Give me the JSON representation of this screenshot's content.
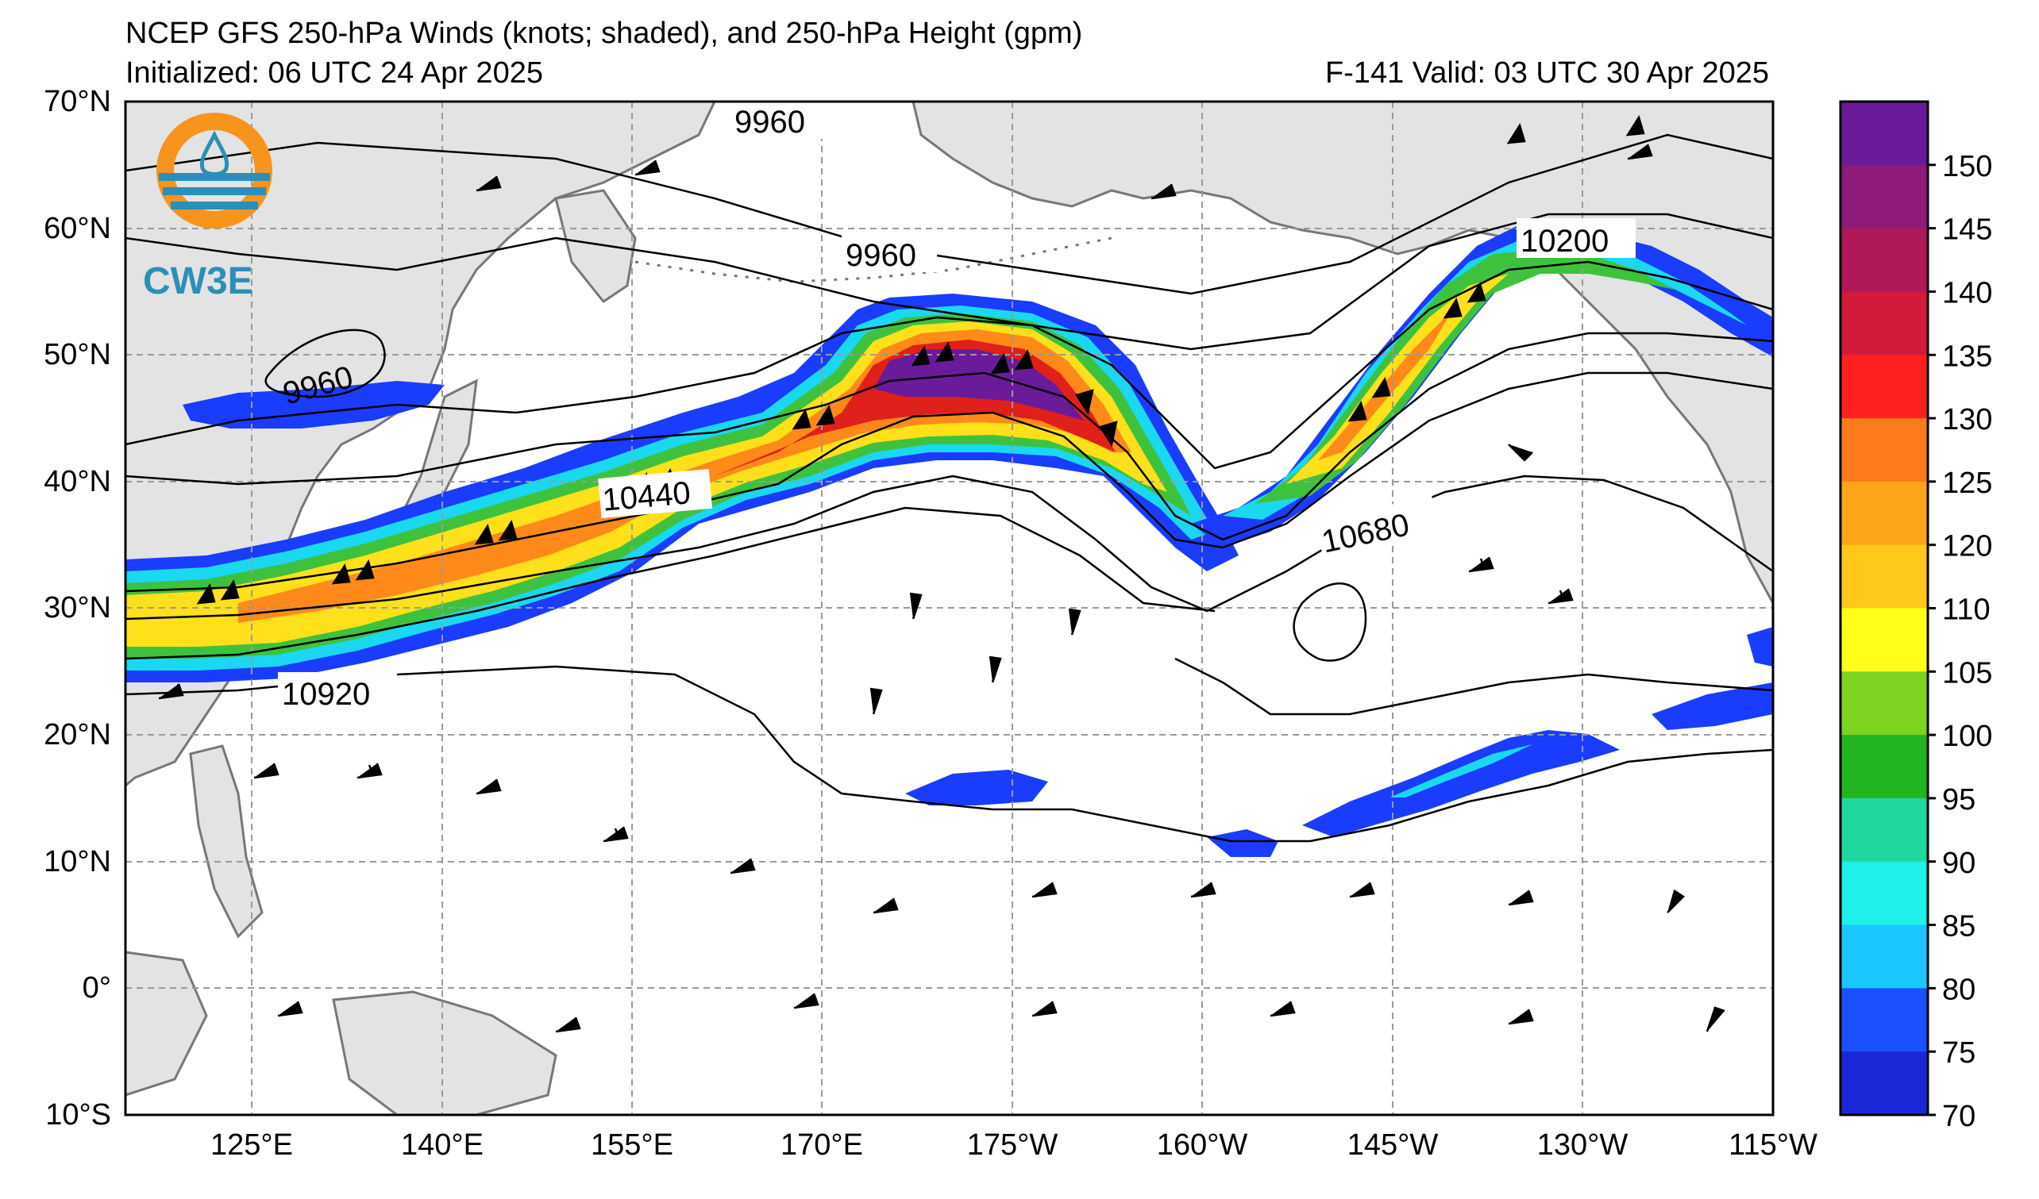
{
  "header": {
    "title": "NCEP GFS 250-hPa Winds (knots; shaded), and 250-hPa Height (gpm)",
    "initialized": "Initialized: 06 UTC 24 Apr 2025",
    "valid": "F-141  Valid: 03 UTC 30 Apr 2025"
  },
  "logo": {
    "text": "CW3E",
    "ring_color": "#f7941d",
    "water_color": "#2b8fb8"
  },
  "axes": {
    "lat_labels": [
      "70°N",
      "60°N",
      "50°N",
      "40°N",
      "30°N",
      "20°N",
      "10°N",
      "0°",
      "10°S"
    ],
    "lon_labels": [
      "125°E",
      "140°E",
      "155°E",
      "170°E",
      "175°W",
      "160°W",
      "145°W",
      "130°W",
      "115°W"
    ]
  },
  "contour_labels": [
    "9960",
    "9960",
    "9960",
    "10200",
    "10440",
    "10680",
    "10920"
  ],
  "colorbar": {
    "labels": [
      "150",
      "145",
      "140",
      "135",
      "130",
      "125",
      "120",
      "110",
      "105",
      "100",
      "95",
      "90",
      "85",
      "80",
      "75",
      "70"
    ],
    "colors": [
      "#6a1b9a",
      "#8e1a7a",
      "#b0185a",
      "#d41a3a",
      "#ff2020",
      "#ff7a1a",
      "#ffa51a",
      "#ffc81a",
      "#ffff1a",
      "#7ed321",
      "#21b521",
      "#1ed8a0",
      "#1ef0ea",
      "#1ac8ff",
      "#1a50ff",
      "#1a28d8"
    ]
  },
  "colors": {
    "land": "#e3e3e3",
    "coast": "#777777",
    "grid": "#9a9a9a"
  }
}
